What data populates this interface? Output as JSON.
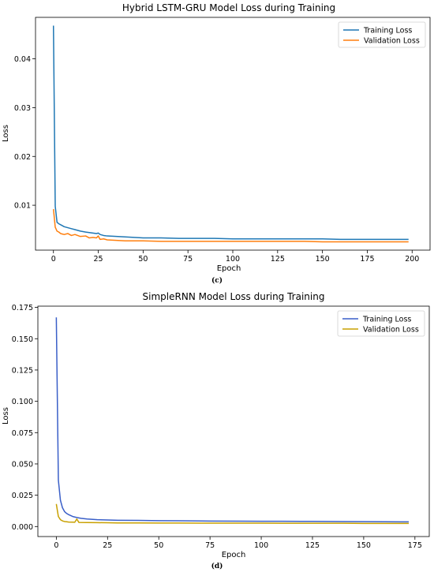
{
  "chart_data": [
    {
      "type": "line",
      "title": "Hybrid LSTM-GRU Model Loss during Training",
      "xlabel": "Epoch",
      "ylabel": "Loss",
      "caption": "(c)",
      "xlim": [
        -10,
        210
      ],
      "ylim": [
        0.0008,
        0.0485
      ],
      "xticks": [
        0,
        25,
        50,
        75,
        100,
        125,
        150,
        175,
        200
      ],
      "xtick_labels": [
        "0",
        "25",
        "50",
        "75",
        "100",
        "125",
        "150",
        "175",
        "200"
      ],
      "yticks": [
        0.01,
        0.02,
        0.03,
        0.04
      ],
      "ytick_labels": [
        "0.01",
        "0.02",
        "0.03",
        "0.04"
      ],
      "grid": false,
      "legend": "top-right",
      "series": [
        {
          "name": "Training Loss",
          "color": "#1f77b4",
          "x": [
            0,
            1,
            2,
            3,
            4,
            5,
            6,
            8,
            10,
            12,
            15,
            18,
            20,
            22,
            24,
            25,
            26,
            28,
            30,
            35,
            40,
            45,
            50,
            60,
            70,
            80,
            90,
            100,
            110,
            120,
            130,
            140,
            150,
            160,
            170,
            180,
            190,
            198
          ],
          "y": [
            0.0468,
            0.0098,
            0.0065,
            0.0062,
            0.006,
            0.0058,
            0.0056,
            0.0054,
            0.0052,
            0.005,
            0.0047,
            0.0045,
            0.0044,
            0.0043,
            0.0042,
            0.0043,
            0.004,
            0.0038,
            0.0037,
            0.0036,
            0.0035,
            0.0034,
            0.0033,
            0.0033,
            0.0032,
            0.0032,
            0.0032,
            0.0031,
            0.0031,
            0.0031,
            0.0031,
            0.0031,
            0.0031,
            0.003,
            0.003,
            0.003,
            0.003,
            0.003
          ]
        },
        {
          "name": "Validation Loss",
          "color": "#ff7f0e",
          "x": [
            0,
            1,
            2,
            3,
            4,
            5,
            6,
            8,
            10,
            12,
            15,
            18,
            20,
            22,
            24,
            25,
            26,
            28,
            30,
            35,
            40,
            45,
            50,
            60,
            70,
            80,
            90,
            100,
            110,
            120,
            130,
            140,
            150,
            160,
            170,
            180,
            190,
            198
          ],
          "y": [
            0.0092,
            0.0055,
            0.0047,
            0.0045,
            0.0042,
            0.0041,
            0.004,
            0.0042,
            0.0038,
            0.004,
            0.0036,
            0.0037,
            0.0033,
            0.0034,
            0.0033,
            0.0037,
            0.003,
            0.0031,
            0.0029,
            0.0028,
            0.0027,
            0.0027,
            0.0027,
            0.0026,
            0.0026,
            0.0026,
            0.0026,
            0.0026,
            0.0026,
            0.0026,
            0.0026,
            0.0026,
            0.0025,
            0.0025,
            0.0025,
            0.0025,
            0.0025,
            0.0025
          ]
        }
      ]
    },
    {
      "type": "line",
      "title": "SimpleRNN Model Loss during Training",
      "xlabel": "Epoch",
      "ylabel": "Loss",
      "caption": "(d)",
      "xlim": [
        -9,
        182
      ],
      "ylim": [
        -0.008,
        0.176
      ],
      "xticks": [
        0,
        25,
        50,
        75,
        100,
        125,
        150,
        175
      ],
      "xtick_labels": [
        "0",
        "25",
        "50",
        "75",
        "100",
        "125",
        "150",
        "175"
      ],
      "yticks": [
        0,
        0.025,
        0.05,
        0.075,
        0.1,
        0.125,
        0.15,
        0.175
      ],
      "ytick_labels": [
        "0.000",
        "0.025",
        "0.050",
        "0.075",
        "0.100",
        "0.125",
        "0.150",
        "0.175"
      ],
      "grid": false,
      "legend": "top-right",
      "series": [
        {
          "name": "Training Loss",
          "color": "#3a5fc8",
          "x": [
            0,
            1,
            2,
            3,
            4,
            5,
            6,
            8,
            10,
            12,
            15,
            20,
            25,
            30,
            40,
            50,
            60,
            75,
            90,
            100,
            110,
            125,
            140,
            150,
            160,
            172
          ],
          "y": [
            0.167,
            0.037,
            0.021,
            0.015,
            0.012,
            0.0105,
            0.0095,
            0.008,
            0.0072,
            0.0066,
            0.006,
            0.0055,
            0.0052,
            0.005,
            0.0049,
            0.0047,
            0.0046,
            0.0044,
            0.0043,
            0.0042,
            0.0042,
            0.0041,
            0.004,
            0.0039,
            0.0038,
            0.0037
          ]
        },
        {
          "name": "Validation Loss",
          "color": "#c8a000",
          "x": [
            0,
            1,
            2,
            3,
            4,
            5,
            6,
            8,
            9,
            10,
            11,
            15,
            20,
            25,
            30,
            40,
            50,
            60,
            75,
            90,
            100,
            110,
            125,
            140,
            150,
            160,
            172
          ],
          "y": [
            0.018,
            0.008,
            0.0055,
            0.0045,
            0.004,
            0.0038,
            0.0036,
            0.0035,
            0.0034,
            0.006,
            0.0033,
            0.0032,
            0.0031,
            0.003,
            0.0029,
            0.0029,
            0.0028,
            0.0028,
            0.0027,
            0.0027,
            0.0027,
            0.0026,
            0.0026,
            0.0026,
            0.0025,
            0.0025,
            0.0025
          ]
        }
      ]
    }
  ]
}
